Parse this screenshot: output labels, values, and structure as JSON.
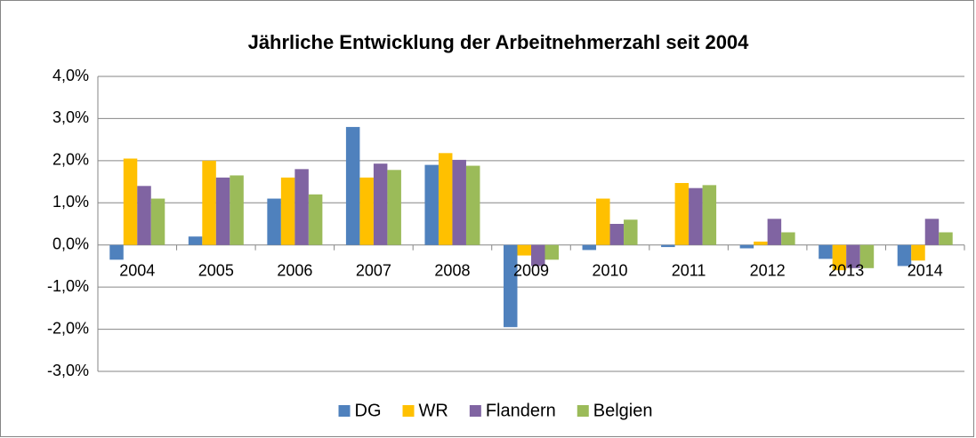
{
  "chart_data": {
    "type": "bar",
    "title": "Jährliche Entwicklung der Arbeitnehmerzahl seit 2004",
    "categories": [
      "2004",
      "2005",
      "2006",
      "2007",
      "2008",
      "2009",
      "2010",
      "2011",
      "2012",
      "2013",
      "2014"
    ],
    "series": [
      {
        "name": "DG",
        "color": "#4f81bd",
        "values": [
          -0.35,
          0.2,
          1.1,
          2.8,
          1.9,
          -1.95,
          -0.12,
          -0.05,
          -0.08,
          -0.33,
          -0.5
        ]
      },
      {
        "name": "WR",
        "color": "#ffc000",
        "values": [
          2.05,
          2.0,
          1.6,
          1.6,
          2.18,
          -0.25,
          1.1,
          1.47,
          0.08,
          -0.6,
          -0.37
        ]
      },
      {
        "name": "Flandern",
        "color": "#8064a2",
        "values": [
          1.4,
          1.6,
          1.8,
          1.93,
          2.02,
          -0.5,
          0.5,
          1.35,
          0.62,
          -0.55,
          0.62
        ]
      },
      {
        "name": "Belgien",
        "color": "#9bbb59",
        "values": [
          1.1,
          1.65,
          1.2,
          1.78,
          1.88,
          -0.35,
          0.6,
          1.42,
          0.3,
          -0.55,
          0.3
        ]
      }
    ],
    "ylim": [
      -3,
      4
    ],
    "yticks": [
      {
        "value": -3,
        "label": "-3,0%"
      },
      {
        "value": -2,
        "label": "-2,0%"
      },
      {
        "value": -1,
        "label": "-1,0%"
      },
      {
        "value": 0,
        "label": "0,0%"
      },
      {
        "value": 1,
        "label": "1,0%"
      },
      {
        "value": 2,
        "label": "2,0%"
      },
      {
        "value": 3,
        "label": "3,0%"
      },
      {
        "value": 4,
        "label": "4,0%"
      }
    ],
    "grid": true,
    "legend": "bottom"
  }
}
